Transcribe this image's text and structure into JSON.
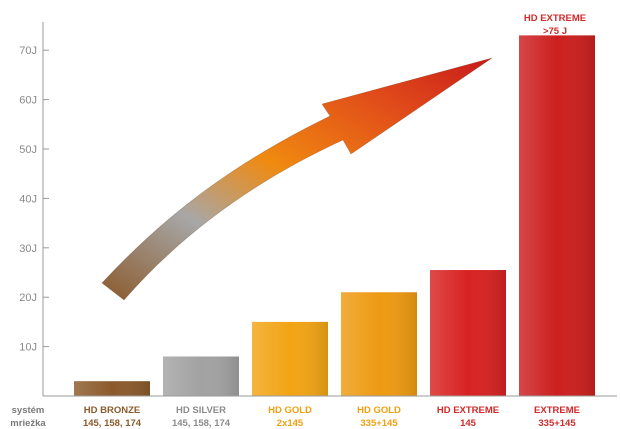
{
  "chart_data": {
    "type": "bar",
    "row_label": [
      "systém",
      "mriežka"
    ],
    "y_tick_labels": [
      "10J",
      "20J",
      "30J",
      "40J",
      "50J",
      "60J",
      "70J"
    ],
    "ylim": [
      0,
      75
    ],
    "grid": false,
    "categories": [
      {
        "line1": "HD BRONZE",
        "line2": "145, 158, 174",
        "value": 3,
        "color": "#8b5a2b",
        "label_color": "#8b5a2b"
      },
      {
        "line1": "HD SILVER",
        "line2": "145, 158, 174",
        "value": 8,
        "color": "#a2a2a2",
        "label_color": "#8c8c8c"
      },
      {
        "line1": "HD GOLD",
        "line2": "2x145",
        "value": 15,
        "color": "#f2a414",
        "label_color": "#f0a010"
      },
      {
        "line1": "HD GOLD",
        "line2": "335+145",
        "value": 21,
        "color": "#ee9a12",
        "label_color": "#f0a010"
      },
      {
        "line1": "HD EXTREME",
        "line2": "145",
        "value": 25.5,
        "color": "#d82222",
        "label_color": "#d02a2a"
      },
      {
        "line1": "EXTREME",
        "line2": "335+145",
        "value": 73,
        "color": "#cc1f1f",
        "label_color": "#d02a2a"
      }
    ],
    "annotation": {
      "line1": "HD EXTREME",
      "line2": ">75 J"
    }
  }
}
